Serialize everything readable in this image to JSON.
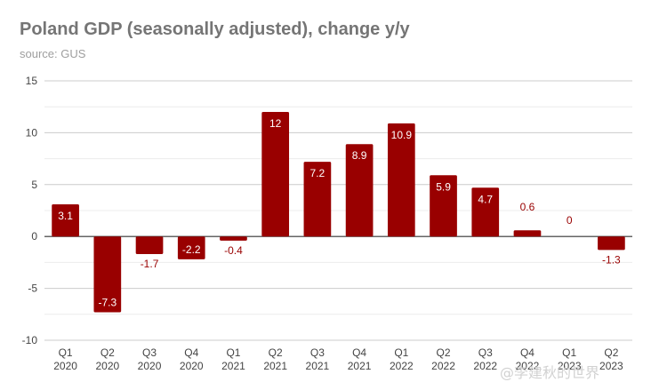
{
  "chart_data": {
    "type": "bar",
    "title": "Poland GDP (seasonally adjusted), change y/y",
    "subtitle": "source: GUS",
    "categories": [
      [
        "Q1",
        "2020"
      ],
      [
        "Q2",
        "2020"
      ],
      [
        "Q3",
        "2020"
      ],
      [
        "Q4",
        "2020"
      ],
      [
        "Q1",
        "2021"
      ],
      [
        "Q2",
        "2021"
      ],
      [
        "Q3",
        "2021"
      ],
      [
        "Q4",
        "2021"
      ],
      [
        "Q1",
        "2022"
      ],
      [
        "Q2",
        "2022"
      ],
      [
        "Q3",
        "2022"
      ],
      [
        "Q4",
        "2022"
      ],
      [
        "Q1",
        "2023"
      ],
      [
        "Q2",
        "2023"
      ]
    ],
    "values": [
      3.1,
      -7.3,
      -1.7,
      -2.2,
      -0.4,
      12,
      7.2,
      8.9,
      10.9,
      5.9,
      4.7,
      0.6,
      0,
      -1.3
    ],
    "data_labels": [
      "3.1",
      "-7.3",
      "-1.7",
      "-2.2",
      "-0.4",
      "12",
      "7.2",
      "8.9",
      "10.9",
      "5.9",
      "4.7",
      "0.6",
      "0",
      "-1.3"
    ],
    "ylim": [
      -10,
      15
    ],
    "yticks": [
      -10,
      -5,
      0,
      5,
      10,
      15
    ],
    "grid": true,
    "bar_color": "#990000",
    "label_inside_color": "#ffffff",
    "label_outside_color": "#990000"
  },
  "watermark": "@李建秋的世界"
}
